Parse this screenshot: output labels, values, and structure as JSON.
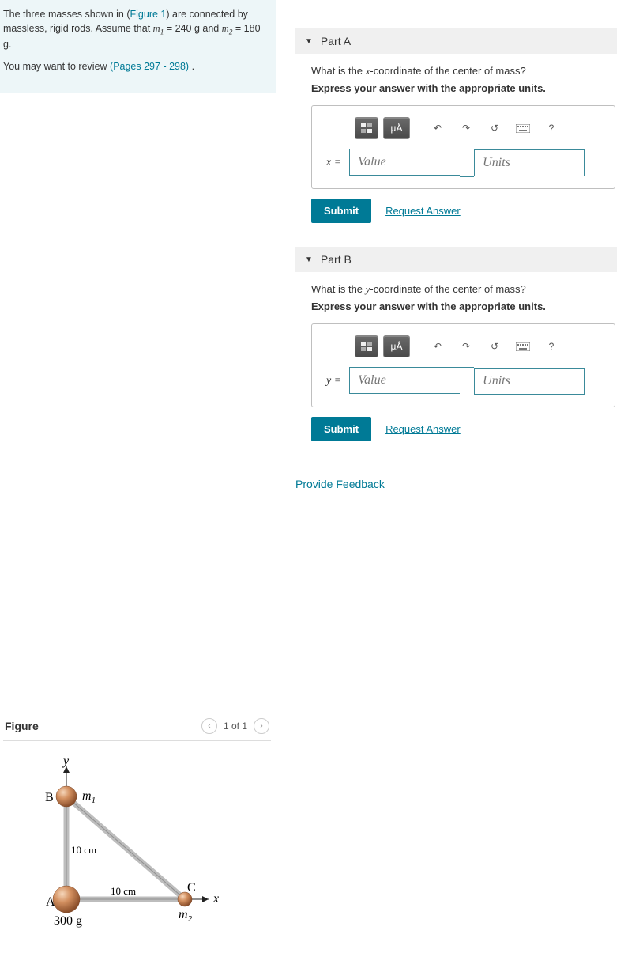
{
  "problem": {
    "intro_html": "The three masses shown in (<a class='link' data-name='figure-ref-link' data-interactable='true'>Figure 1</a>) are connected by massless, rigid rods. Assume that <span class='math'>m<span class='sub'>1</span></span> = 240 g and <span class='math'>m<span class='sub'>2</span></span> = 180 g.",
    "review_prefix": "You may want to review ",
    "review_link": "(Pages 297 - 298)",
    "review_suffix": " ."
  },
  "figure": {
    "title": "Figure",
    "counter": "1 of 1",
    "diagram": {
      "axis_y_label": "y",
      "axis_x_label": "x",
      "point_A": {
        "label": "A",
        "mass_label": "300 g"
      },
      "point_B": {
        "label": "B",
        "mass_side_label": "m",
        "mass_side_sub": "1"
      },
      "point_C": {
        "label": "C",
        "mass_below_label": "m",
        "mass_below_sub": "2"
      },
      "vertical_len": "10 cm",
      "horizontal_len": "10 cm",
      "colors": {
        "ball_fill": "radial-gradient",
        "ball_main": "#c47a4a",
        "ball_hi": "#f2c9a6",
        "ball_dark": "#8a4e2a",
        "rod": "#c9c9c9",
        "rod_edge": "#8f8f8f",
        "axis": "#222"
      }
    }
  },
  "parts": {
    "A": {
      "header": "Part A",
      "question_html": "What is the <span class='math'>x</span>-coordinate of the center of mass?",
      "instruction": "Express your answer with the appropriate units.",
      "var_label": "x =",
      "value_placeholder": "Value",
      "units_placeholder": "Units",
      "toolbar_unit_label": "μÅ",
      "submit": "Submit",
      "request": "Request Answer"
    },
    "B": {
      "header": "Part B",
      "question_html": "What is the <span class='math'>y</span>-coordinate of the center of mass?",
      "instruction": "Express your answer with the appropriate units.",
      "var_label": "y =",
      "value_placeholder": "Value",
      "units_placeholder": "Units",
      "toolbar_unit_label": "μÅ",
      "submit": "Submit",
      "request": "Request Answer"
    }
  },
  "feedback_link": "Provide Feedback"
}
